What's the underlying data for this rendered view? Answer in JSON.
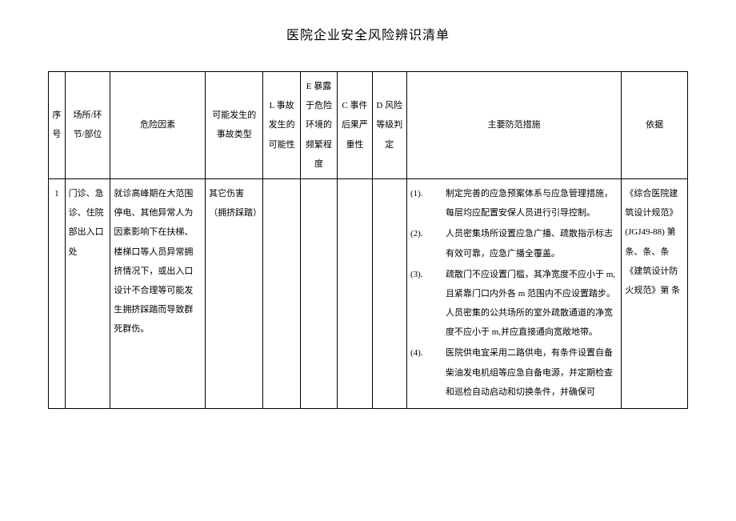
{
  "title": "医院企业安全风险辨识清单",
  "headers": {
    "seq": "序号",
    "place": "场所/环节/部位",
    "risk": "危险因素",
    "accident": "可能发生的事故类型",
    "L": "L 事故发生的可能性",
    "E": "E 暴露于危险环境的频繁程度",
    "C": "C 事件后果严重性",
    "D": "D 风险等级判定",
    "measures": "主要防范措施",
    "reference": "依据"
  },
  "row1": {
    "seq": "1",
    "place": "门诊、急诊、住院部出入口处",
    "risk": "就诊高峰期在大范围停电、其他异常人为因素影响下在扶梯、楼梯口等人员异常拥挤情况下，或出入口设计不合理等可能发生拥挤踩踏而导致群死群伤。",
    "accident": "其它伤害（拥挤踩踏）",
    "L": "",
    "E": "",
    "C": "",
    "D": "",
    "measures": {
      "n1": "(1).",
      "t1": "制定完善的应急预案体系与应急管理措施，每层均应配置安保人员进行引导控制。",
      "n2": "(2).",
      "t2": "人员密集场所设置应急广播、疏散指示标志有效可靠，应急广播全覆盖。",
      "n3": "(3).",
      "t3": "疏散门不应设置门槛，其净宽度不应小于 m,且紧靠门口内外各 m 范围内不应设置踏步。人员密集的公共场所的室外疏散通道的净宽度不应小于 m,并应直接通向宽敞地带。",
      "n4": "(4).",
      "t4": "医院供电宜采用二路供电，有条件设置自备柴油发电机组等应急自备电源，并定期检查和巡检自动启动和切换条件，并确保可"
    },
    "reference": "《综合医院建筑设计规范》(JGJ49-88) 第条、条、条 《建筑设计防火规范》第 条"
  }
}
